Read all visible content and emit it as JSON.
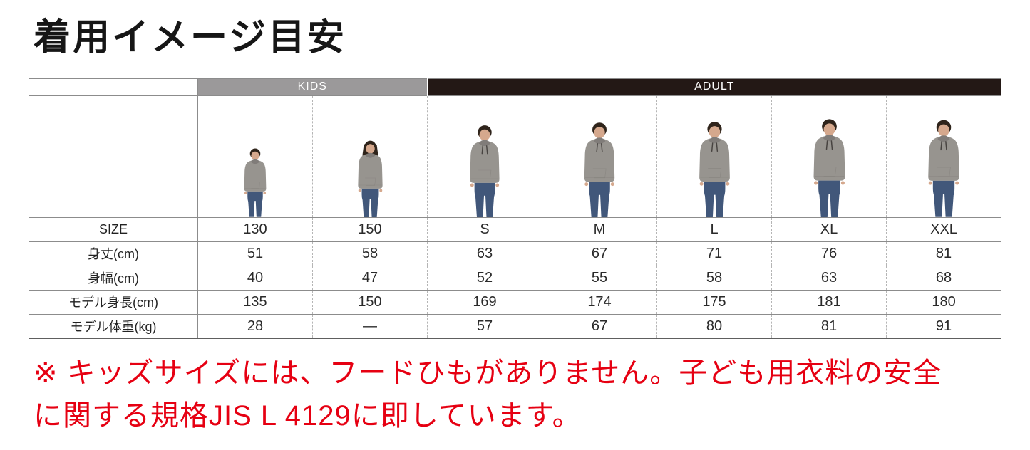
{
  "title": "着用イメージ目安",
  "table": {
    "groups": [
      {
        "key": "kids",
        "label": "KIDS",
        "span": 2
      },
      {
        "key": "adult",
        "label": "ADULT",
        "span": 5
      }
    ],
    "figures": [
      {
        "size": "130",
        "type": "kid",
        "hair": "short",
        "height_cm": 135
      },
      {
        "size": "150",
        "type": "kid",
        "hair": "long",
        "height_cm": 150
      },
      {
        "size": "S",
        "type": "adult",
        "hair": "short",
        "height_cm": 169
      },
      {
        "size": "M",
        "type": "adult",
        "hair": "short",
        "height_cm": 174
      },
      {
        "size": "L",
        "type": "adult",
        "hair": "short",
        "height_cm": 175
      },
      {
        "size": "XL",
        "type": "adult",
        "hair": "short",
        "height_cm": 181
      },
      {
        "size": "XXL",
        "type": "adult",
        "hair": "short",
        "height_cm": 180
      }
    ],
    "rows": [
      {
        "key": "size",
        "label": "SIZE",
        "values": [
          "130",
          "150",
          "S",
          "M",
          "L",
          "XL",
          "XXL"
        ]
      },
      {
        "key": "body-length",
        "label": "身丈(cm)",
        "values": [
          "51",
          "58",
          "63",
          "67",
          "71",
          "76",
          "81"
        ]
      },
      {
        "key": "body-width",
        "label": "身幅(cm)",
        "values": [
          "40",
          "47",
          "52",
          "55",
          "58",
          "63",
          "68"
        ]
      },
      {
        "key": "model-height",
        "label": "モデル身長(cm)",
        "values": [
          "135",
          "150",
          "169",
          "174",
          "175",
          "181",
          "180"
        ]
      },
      {
        "key": "model-weight",
        "label": "モデル体重(kg)",
        "values": [
          "28",
          "―",
          "57",
          "67",
          "80",
          "81",
          "91"
        ]
      }
    ]
  },
  "note": {
    "lines": [
      "※ キッズサイズには、フードひもがありません。子ども用衣料の安全",
      "に関する規格JIS L 4129に即しています。"
    ]
  },
  "colors": {
    "kids_header_bg": "#9b999a",
    "adult_header_bg": "#231815",
    "header_text": "#ffffff",
    "note_red": "#e60012",
    "hoodie_gray": "#97948f",
    "hoodie_shade": "#807c79",
    "jeans_blue": "#41577a",
    "skin": "#d5a88d",
    "hair": "#2f241b",
    "drawstring": "#474340"
  }
}
